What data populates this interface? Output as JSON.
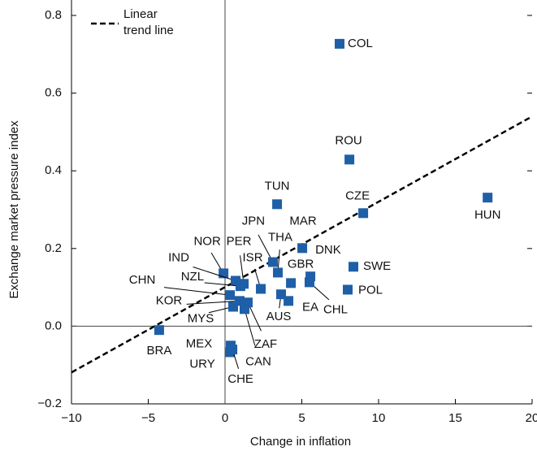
{
  "chart_data": {
    "type": "scatter",
    "x_label": "Change in inflation",
    "y_label": "Exchange market pressure index",
    "xlim": [
      -10,
      20
    ],
    "ylim": [
      -0.2,
      0.8
    ],
    "xticks": [
      {
        "value": -10,
        "label": "−10"
      },
      {
        "value": -5,
        "label": "−5"
      },
      0,
      5,
      10,
      15,
      20
    ],
    "yticks": [
      {
        "value": -0.2,
        "label": "−0.2"
      },
      {
        "value": 0,
        "label": "0.0"
      },
      0.2,
      0.4,
      0.6,
      0.8
    ],
    "series": [
      {
        "color": "#1f5fa8",
        "labels": [
          "COL",
          "ROU",
          "HUN",
          "CZE",
          "TUN",
          "MAR",
          "JPN",
          "THA",
          "SWE",
          "POL",
          "DNK",
          "CHL",
          "GBR",
          "EA",
          "AUS",
          "ISR",
          "PER",
          "NOR",
          "IND",
          "NZL",
          "CHN",
          "KOR",
          "MYS",
          "ZAF",
          "CAN",
          "MEX",
          "URY",
          "CHE",
          "BRA"
        ],
        "x": [
          7.46,
          8.1,
          17.1,
          9.0,
          3.39,
          5.03,
          3.12,
          3.44,
          8.36,
          7.99,
          5.56,
          5.5,
          4.29,
          4.13,
          3.65,
          2.33,
          1.22,
          -0.1,
          0.69,
          1.0,
          0.32,
          0.95,
          0.53,
          1.48,
          1.27,
          0.37,
          0.32,
          0.48,
          -4.29
        ],
        "values": [
          0.727,
          0.429,
          0.331,
          0.291,
          0.314,
          0.201,
          0.165,
          0.138,
          0.153,
          0.094,
          0.128,
          0.113,
          0.111,
          0.065,
          0.082,
          0.096,
          0.109,
          0.136,
          0.117,
          0.103,
          0.08,
          0.065,
          0.05,
          0.061,
          0.044,
          -0.05,
          -0.067,
          -0.06,
          -0.01
        ]
      }
    ],
    "trend": {
      "name": "Linear trend line",
      "color": "#000000",
      "x": [
        -10,
        20
      ],
      "values": [
        -0.119,
        0.54
      ]
    }
  }
}
